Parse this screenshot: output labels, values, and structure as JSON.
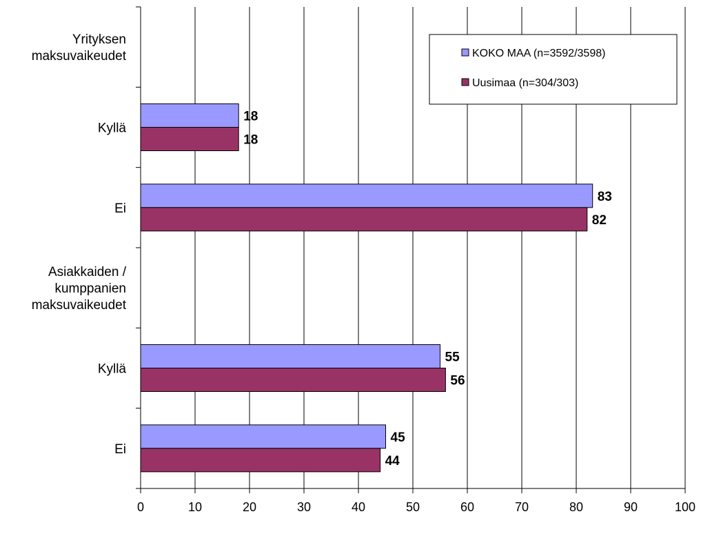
{
  "chart_data": {
    "type": "bar",
    "orientation": "horizontal",
    "categories": [
      "Yrityksen maksuvaikeudet",
      "Kyllä",
      "Ei",
      "Asiakkaiden / kumppanien maksuvaikeudet",
      "Kyllä",
      "Ei"
    ],
    "category_lines": [
      [
        "Yrityksen",
        "maksuvaikeudet"
      ],
      [
        "Kyllä"
      ],
      [
        "Ei"
      ],
      [
        "Asiakkaiden /",
        "kumppanien",
        "maksuvaikeudet"
      ],
      [
        "Kyllä"
      ],
      [
        "Ei"
      ]
    ],
    "series": [
      {
        "name": "KOKO MAA (n=3592/3598)",
        "color": "#9999ff",
        "values": [
          null,
          18,
          83,
          null,
          55,
          45
        ]
      },
      {
        "name": "Uusimaa (n=304/303)",
        "color": "#993366",
        "values": [
          null,
          18,
          82,
          null,
          56,
          44
        ]
      }
    ],
    "xlim": [
      0,
      100
    ],
    "xticks": [
      0,
      10,
      20,
      30,
      40,
      50,
      60,
      70,
      80,
      90,
      100
    ],
    "grid": true,
    "legend_position": "top-right",
    "data_labels": true,
    "title": "",
    "xlabel": "",
    "ylabel": ""
  }
}
